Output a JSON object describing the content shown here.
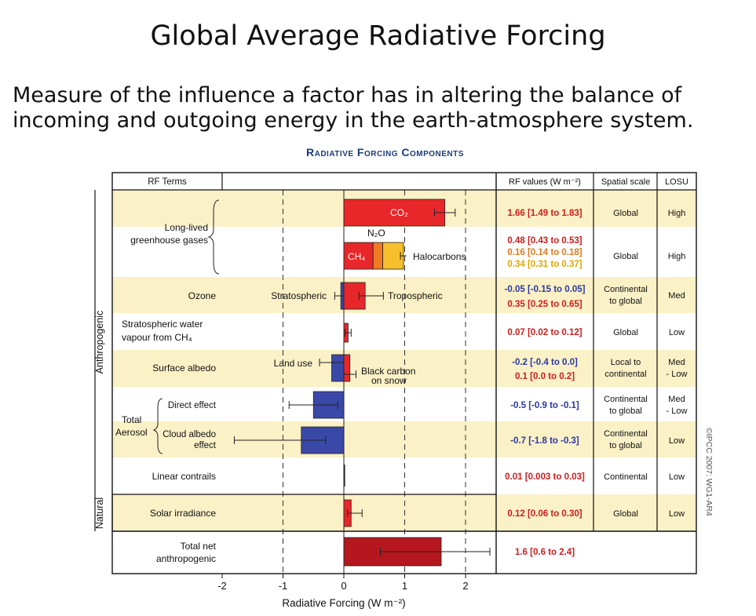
{
  "page": {
    "title": "Global Average Radiative Forcing",
    "subtitle_line1": "Measure of the influence a factor has in altering the balance of",
    "subtitle_line2": "incoming and outgoing energy in the earth-atmosphere system."
  },
  "colors": {
    "red": "#e8272a",
    "orange": "#ef7a23",
    "yellow": "#f6c02d",
    "blue": "#3a48a8",
    "darkred": "#b5171e",
    "band": "#fbf1c6"
  },
  "chart_data": {
    "type": "bar",
    "title": "Radiative Forcing Components",
    "xlabel": "Radiative Forcing (W m⁻²)",
    "xlim": [
      -2,
      2.5
    ],
    "xticks": [
      -2,
      -1,
      0,
      1,
      2
    ],
    "table_headers": {
      "rf_terms": "RF Terms",
      "rf_values": "RF values (W m⁻²)",
      "spatial_scale": "Spatial scale",
      "losu": "LOSU"
    },
    "groups": {
      "anthropogenic": "Anthropogenic",
      "natural": "Natural"
    },
    "rows": [
      {
        "term": "Long-lived greenhouse gases",
        "term_lines": [
          "Long-lived",
          "greenhouse gases"
        ],
        "bars": [
          {
            "label": "CO₂",
            "value": 1.66,
            "low": 1.49,
            "high": 1.83,
            "color": "red",
            "row_key": "co2"
          },
          {
            "label": "N₂O",
            "value": 0.16,
            "low": 0.14,
            "high": 0.18,
            "color": "orange",
            "row_key": "ghg_stack"
          },
          {
            "label": "CH₄",
            "value": 0.48,
            "low": 0.43,
            "high": 0.53,
            "color": "red",
            "row_key": "ghg_stack"
          },
          {
            "label": "Halocarbons",
            "value": 0.34,
            "low": 0.31,
            "high": 0.37,
            "color": "yellow",
            "row_key": "ghg_stack"
          }
        ],
        "values_text": [
          "1.66 [1.49 to 1.83]",
          "0.48 [0.43 to 0.53]",
          "0.16 [0.14 to 0.18]",
          "0.34 [0.31 to 0.37]"
        ],
        "scale": [
          "Global",
          "Global"
        ],
        "losu": [
          "High",
          "High"
        ]
      },
      {
        "term": "Ozone",
        "bars": [
          {
            "label": "Stratospheric",
            "value": -0.05,
            "low": -0.15,
            "high": 0.05,
            "color": "blue"
          },
          {
            "label": "Tropospheric",
            "value": 0.35,
            "low": 0.25,
            "high": 0.65,
            "color": "red"
          }
        ],
        "values_text": [
          "-0.05 [-0.15 to 0.05]",
          "0.35 [0.25 to 0.65]"
        ],
        "scale": "Continental to global",
        "losu": "Med"
      },
      {
        "term": "Stratospheric water vapour from CH₄",
        "term_lines": [
          "Stratospheric water",
          "vapour from CH₄"
        ],
        "bars": [
          {
            "label": "",
            "value": 0.07,
            "low": 0.02,
            "high": 0.12,
            "color": "red"
          }
        ],
        "values_text": [
          "0.07 [0.02 to 0.12]"
        ],
        "scale": "Global",
        "losu": "Low"
      },
      {
        "term": "Surface albedo",
        "bars": [
          {
            "label": "Land use",
            "value": -0.2,
            "low": -0.4,
            "high": 0.0,
            "color": "blue"
          },
          {
            "label": "Black carbon on snow",
            "value": 0.1,
            "low": 0.0,
            "high": 0.2,
            "color": "red"
          }
        ],
        "values_text": [
          "-0.2 [-0.4 to 0.0]",
          "0.1 [0.0 to 0.2]"
        ],
        "scale": "Local to continental",
        "losu": "Med - Low"
      },
      {
        "term": "Direct effect",
        "parent": "Total Aerosol",
        "bars": [
          {
            "label": "",
            "value": -0.5,
            "low": -0.9,
            "high": -0.1,
            "color": "blue"
          }
        ],
        "values_text": [
          "-0.5 [-0.9 to -0.1]"
        ],
        "scale": "Continental to global",
        "losu": "Med - Low"
      },
      {
        "term": "Cloud albedo effect",
        "parent": "Total Aerosol",
        "bars": [
          {
            "label": "",
            "value": -0.7,
            "low": -1.8,
            "high": -0.3,
            "color": "blue"
          }
        ],
        "values_text": [
          "-0.7 [-1.8 to -0.3]"
        ],
        "scale": "Continental to global",
        "losu": "Low"
      },
      {
        "term": "Linear contrails",
        "bars": [
          {
            "label": "",
            "value": 0.01,
            "low": 0.003,
            "high": 0.03,
            "color": "red"
          }
        ],
        "values_text": [
          "0.01 [0.003 to 0.03]"
        ],
        "scale": "Continental",
        "losu": "Low"
      },
      {
        "term": "Solar irradiance",
        "group": "natural",
        "bars": [
          {
            "label": "",
            "value": 0.12,
            "low": 0.06,
            "high": 0.3,
            "color": "red"
          }
        ],
        "values_text": [
          "0.12 [0.06 to 0.30]"
        ],
        "scale": "Global",
        "losu": "Low"
      },
      {
        "term": "Total net anthropogenic",
        "term_lines": [
          "Total net",
          "anthropogenic"
        ],
        "bars": [
          {
            "label": "",
            "value": 1.6,
            "low": 0.6,
            "high": 2.4,
            "color": "darkred"
          }
        ],
        "values_text": [
          "1.6 [0.6 to 2.4]"
        ]
      }
    ],
    "labels": {
      "total": "Total",
      "aerosol": "Aerosol",
      "direct": "Direct effect",
      "cloud1": "Cloud albedo",
      "cloud2": "effect",
      "black1": "Black carbon",
      "black2": "on snow",
      "copyright": "©IPCC 2007: WG1-AR4"
    }
  }
}
